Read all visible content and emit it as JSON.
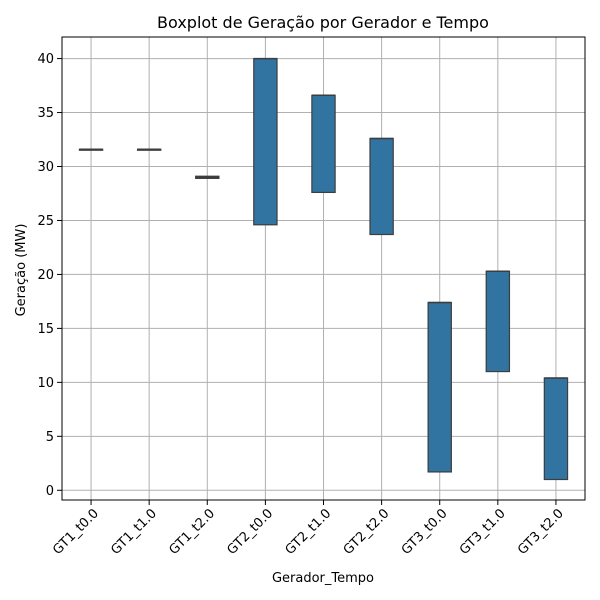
{
  "chart_data": {
    "type": "box",
    "title": "Boxplot de Geração por Gerador e Tempo",
    "xlabel": "Gerador_Tempo",
    "ylabel": "Geração (MW)",
    "categories": [
      "GT1_t0.0",
      "GT1_t1.0",
      "GT1_t2.0",
      "GT2_t0.0",
      "GT2_t1.0",
      "GT2_t2.0",
      "GT3_t0.0",
      "GT3_t1.0",
      "GT3_t2.0"
    ],
    "boxes": [
      {
        "q1": 31.6,
        "median": 31.6,
        "q3": 31.6
      },
      {
        "q1": 31.6,
        "median": 31.6,
        "q3": 31.6
      },
      {
        "q1": 28.9,
        "median": 29.0,
        "q3": 29.1
      },
      {
        "q1": 24.6,
        "median": 40.0,
        "q3": 40.0
      },
      {
        "q1": 27.6,
        "median": 36.6,
        "q3": 36.6
      },
      {
        "q1": 23.7,
        "median": 32.6,
        "q3": 32.6
      },
      {
        "q1": 1.7,
        "median": 17.4,
        "q3": 17.4
      },
      {
        "q1": 11.0,
        "median": 20.3,
        "q3": 20.3
      },
      {
        "q1": 1.0,
        "median": 10.4,
        "q3": 10.4
      }
    ],
    "yticks": [
      0,
      5,
      10,
      15,
      20,
      25,
      30,
      35,
      40
    ],
    "ylim": [
      -0.9,
      42.0
    ],
    "grid": true,
    "box_color": "#3274a1",
    "edge_color": "#3d3d3d"
  }
}
